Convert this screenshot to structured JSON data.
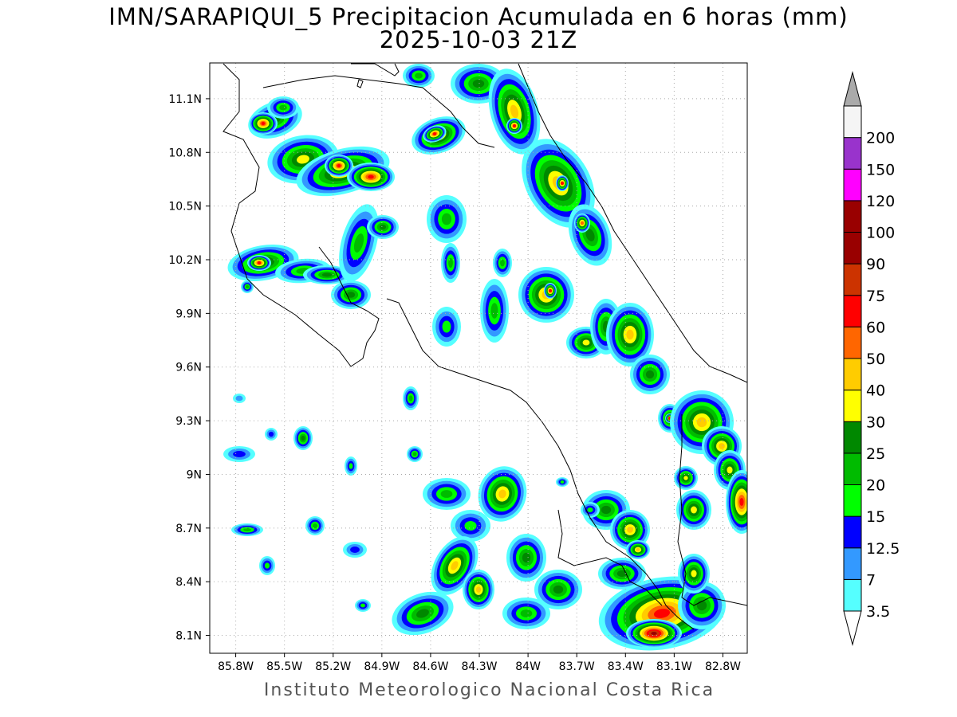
{
  "title": {
    "line1": "IMN/SARAPIQUI_5 Precipitacion Acumulada en 6 horas (mm)",
    "line2": "2025-10-03 21Z"
  },
  "footer": "Instituto Meteorologico Nacional Costa Rica",
  "map": {
    "lon_range": [
      -85.96,
      -82.65
    ],
    "lat_range": [
      8.0,
      11.3
    ],
    "lat_ticks": [
      {
        "value": 11.1,
        "label": "11.1N"
      },
      {
        "value": 10.8,
        "label": "10.8N"
      },
      {
        "value": 10.5,
        "label": "10.5N"
      },
      {
        "value": 10.2,
        "label": "10.2N"
      },
      {
        "value": 9.9,
        "label": "9.9N"
      },
      {
        "value": 9.6,
        "label": "9.6N"
      },
      {
        "value": 9.3,
        "label": "9.3N"
      },
      {
        "value": 9.0,
        "label": "9N"
      },
      {
        "value": 8.7,
        "label": "8.7N"
      },
      {
        "value": 8.4,
        "label": "8.4N"
      },
      {
        "value": 8.1,
        "label": "8.1N"
      }
    ],
    "lon_ticks": [
      {
        "value": -85.8,
        "label": "85.8W"
      },
      {
        "value": -85.5,
        "label": "85.5W"
      },
      {
        "value": -85.2,
        "label": "85.2W"
      },
      {
        "value": -84.9,
        "label": "84.9W"
      },
      {
        "value": -84.6,
        "label": "84.6W"
      },
      {
        "value": -84.3,
        "label": "84.3W"
      },
      {
        "value": -84.0,
        "label": "84W"
      },
      {
        "value": -83.7,
        "label": "83.7W"
      },
      {
        "value": -83.4,
        "label": "83.4W"
      },
      {
        "value": -83.1,
        "label": "83.1W"
      },
      {
        "value": -82.8,
        "label": "82.8W"
      }
    ],
    "grid": true
  },
  "colorbar": {
    "levels": [
      {
        "label": "3.5",
        "color": "#55ffff"
      },
      {
        "label": "7",
        "color": "#3399ff"
      },
      {
        "label": "12.5",
        "color": "#0000ff"
      },
      {
        "label": "15",
        "color": "#00ff00"
      },
      {
        "label": "20",
        "color": "#00bb00"
      },
      {
        "label": "25",
        "color": "#008800"
      },
      {
        "label": "30",
        "color": "#ffff00"
      },
      {
        "label": "40",
        "color": "#ffcc00"
      },
      {
        "label": "50",
        "color": "#ff6600"
      },
      {
        "label": "60",
        "color": "#ff0000"
      },
      {
        "label": "75",
        "color": "#cc3300"
      },
      {
        "label": "90",
        "color": "#990000"
      },
      {
        "label": "100",
        "color": "#990000"
      },
      {
        "label": "120",
        "color": "#ff00ff"
      },
      {
        "label": "150",
        "color": "#9933cc"
      },
      {
        "label": "200",
        "color": "#f5f5f5"
      }
    ],
    "over_color": "#aaaaaa",
    "under_color": "#ffffff"
  }
}
